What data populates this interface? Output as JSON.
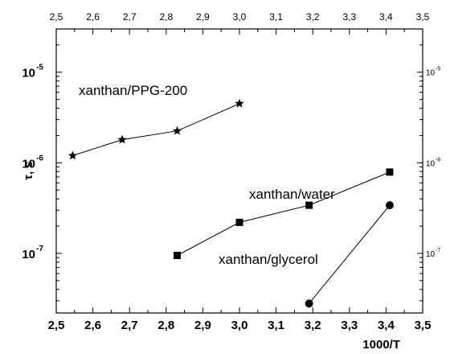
{
  "chart_data": {
    "type": "scatter",
    "title": "",
    "xlabel": "1000/T",
    "ylabel": "τ, s",
    "x_range": [
      2.5,
      3.5
    ],
    "y_range": [
      2.2e-08,
      3e-05
    ],
    "y_scale": "log",
    "grid": false,
    "x_ticks": [
      "2,5",
      "2,6",
      "2,7",
      "2,8",
      "2,9",
      "3,0",
      "3,1",
      "3,2",
      "3,3",
      "3,4",
      "3,5"
    ],
    "x_tick_values": [
      2.5,
      2.6,
      2.7,
      2.8,
      2.9,
      3.0,
      3.1,
      3.2,
      3.3,
      3.4,
      3.5
    ],
    "y_ticks": [
      {
        "value": 1e-05,
        "base": "10",
        "exp": "-5"
      },
      {
        "value": 1e-06,
        "base": "10",
        "exp": "-6"
      },
      {
        "value": 1e-07,
        "base": "10",
        "exp": "-7"
      }
    ],
    "series": [
      {
        "name": "xanthan/PPG-200",
        "marker": "star",
        "x": [
          2.545,
          2.68,
          2.83,
          3.0
        ],
        "y": [
          1.2e-06,
          1.8e-06,
          2.25e-06,
          4.5e-06
        ]
      },
      {
        "name": "xanthan/water",
        "marker": "square",
        "x": [
          2.83,
          3.0,
          3.19,
          3.41
        ],
        "y": [
          9.5e-08,
          2.2e-07,
          3.4e-07,
          7.9e-07
        ]
      },
      {
        "name": "xanthan/glycerol",
        "marker": "circle",
        "x": [
          3.19,
          3.41
        ],
        "y": [
          2.8e-08,
          3.4e-07
        ]
      }
    ]
  }
}
